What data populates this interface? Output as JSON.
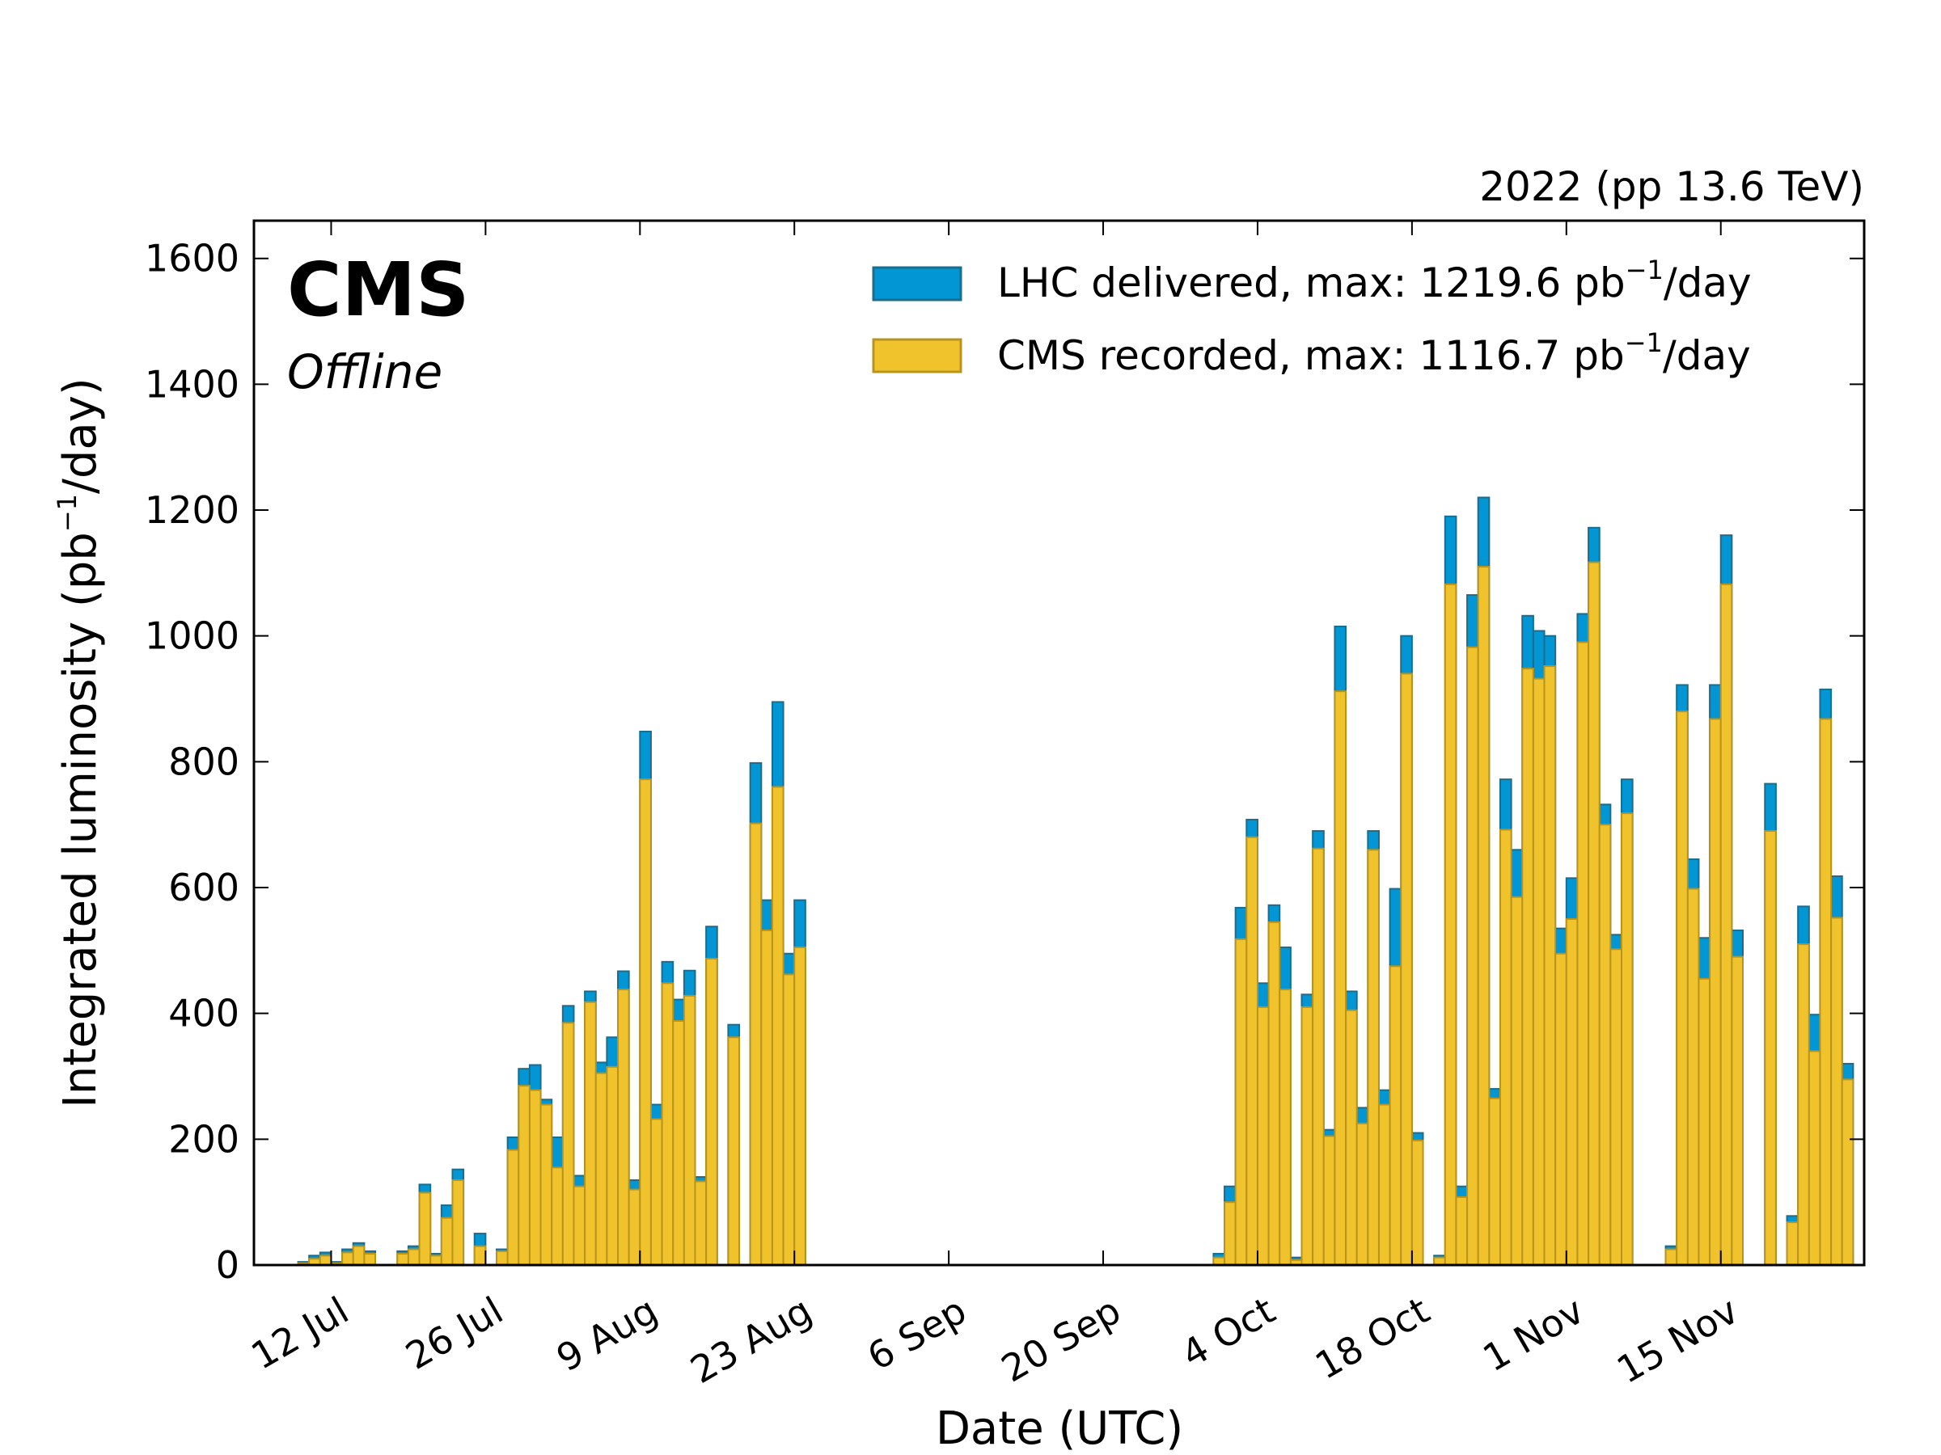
{
  "chart_data": {
    "type": "bar",
    "top_right_label": "2022 (pp 13.6 TeV)",
    "experiment": "CMS",
    "status": "Offline",
    "xlabel": "Date (UTC)",
    "ylabel": "Integrated luminosity (pb",
    "ylabel_sup": "−1",
    "ylabel_suffix": "/day)",
    "ylim": [
      0,
      1660
    ],
    "yticks": [
      0,
      200,
      400,
      600,
      800,
      1000,
      1200,
      1400,
      1600
    ],
    "x_start_date": "2022-07-05",
    "x_end_date": "2022-11-28",
    "xticks": [
      {
        "date": "2022-07-12",
        "label": "12 Jul"
      },
      {
        "date": "2022-07-26",
        "label": "26 Jul"
      },
      {
        "date": "2022-08-09",
        "label": "9 Aug"
      },
      {
        "date": "2022-08-23",
        "label": "23 Aug"
      },
      {
        "date": "2022-09-06",
        "label": "6 Sep"
      },
      {
        "date": "2022-09-20",
        "label": "20 Sep"
      },
      {
        "date": "2022-10-04",
        "label": "4 Oct"
      },
      {
        "date": "2022-10-18",
        "label": "18 Oct"
      },
      {
        "date": "2022-11-01",
        "label": "1 Nov"
      },
      {
        "date": "2022-11-15",
        "label": "15 Nov"
      }
    ],
    "legend": [
      {
        "label": "LHC delivered, max: 1219.6 pb",
        "sup": "−1",
        "suffix": "/day",
        "color": "#0296d4",
        "edge": "#1c6c8c"
      },
      {
        "label": "CMS recorded, max: 1116.7 pb",
        "sup": "−1",
        "suffix": "/day",
        "color": "#f0c22b",
        "edge": "#b8941e"
      }
    ],
    "grid": false,
    "legend_position": "top-right",
    "series": [
      {
        "name": "LHC delivered",
        "color": "#0296d4",
        "points": [
          [
            "2022-07-05",
            0
          ],
          [
            "2022-07-06",
            0
          ],
          [
            "2022-07-07",
            0
          ],
          [
            "2022-07-08",
            0
          ],
          [
            "2022-07-09",
            5
          ],
          [
            "2022-07-10",
            15
          ],
          [
            "2022-07-11",
            20
          ],
          [
            "2022-07-12",
            5
          ],
          [
            "2022-07-13",
            25
          ],
          [
            "2022-07-14",
            35
          ],
          [
            "2022-07-15",
            22
          ],
          [
            "2022-07-16",
            0
          ],
          [
            "2022-07-17",
            0
          ],
          [
            "2022-07-18",
            22
          ],
          [
            "2022-07-19",
            30
          ],
          [
            "2022-07-20",
            128
          ],
          [
            "2022-07-21",
            18
          ],
          [
            "2022-07-22",
            95
          ],
          [
            "2022-07-23",
            152
          ],
          [
            "2022-07-24",
            0
          ],
          [
            "2022-07-25",
            50
          ],
          [
            "2022-07-26",
            0
          ],
          [
            "2022-07-27",
            25
          ],
          [
            "2022-07-28",
            203
          ],
          [
            "2022-07-29",
            312
          ],
          [
            "2022-07-30",
            318
          ],
          [
            "2022-07-31",
            263
          ],
          [
            "2022-08-01",
            203
          ],
          [
            "2022-08-02",
            412
          ],
          [
            "2022-08-03",
            142
          ],
          [
            "2022-08-04",
            435
          ],
          [
            "2022-08-05",
            322
          ],
          [
            "2022-08-06",
            362
          ],
          [
            "2022-08-07",
            467
          ],
          [
            "2022-08-08",
            135
          ],
          [
            "2022-08-09",
            848
          ],
          [
            "2022-08-10",
            255
          ],
          [
            "2022-08-11",
            482
          ],
          [
            "2022-08-12",
            422
          ],
          [
            "2022-08-13",
            468
          ],
          [
            "2022-08-14",
            140
          ],
          [
            "2022-08-15",
            538
          ],
          [
            "2022-08-16",
            0
          ],
          [
            "2022-08-17",
            382
          ],
          [
            "2022-08-18",
            0
          ],
          [
            "2022-08-19",
            798
          ],
          [
            "2022-08-20",
            580
          ],
          [
            "2022-08-21",
            895
          ],
          [
            "2022-08-22",
            495
          ],
          [
            "2022-08-23",
            580
          ]
        ]
      },
      {
        "name": "CMS recorded",
        "color": "#f0c22b",
        "points": [
          [
            "2022-07-05",
            0
          ],
          [
            "2022-07-06",
            0
          ],
          [
            "2022-07-07",
            0
          ],
          [
            "2022-07-08",
            0
          ],
          [
            "2022-07-09",
            3
          ],
          [
            "2022-07-10",
            10
          ],
          [
            "2022-07-11",
            15
          ],
          [
            "2022-07-12",
            3
          ],
          [
            "2022-07-13",
            20
          ],
          [
            "2022-07-14",
            30
          ],
          [
            "2022-07-15",
            18
          ],
          [
            "2022-07-16",
            0
          ],
          [
            "2022-07-17",
            0
          ],
          [
            "2022-07-18",
            18
          ],
          [
            "2022-07-19",
            25
          ],
          [
            "2022-07-20",
            115
          ],
          [
            "2022-07-21",
            15
          ],
          [
            "2022-07-22",
            75
          ],
          [
            "2022-07-23",
            135
          ],
          [
            "2022-07-24",
            0
          ],
          [
            "2022-07-25",
            30
          ],
          [
            "2022-07-26",
            0
          ],
          [
            "2022-07-27",
            22
          ],
          [
            "2022-07-28",
            183
          ],
          [
            "2022-07-29",
            285
          ],
          [
            "2022-07-30",
            278
          ],
          [
            "2022-07-31",
            255
          ],
          [
            "2022-08-01",
            155
          ],
          [
            "2022-08-02",
            385
          ],
          [
            "2022-08-03",
            125
          ],
          [
            "2022-08-04",
            418
          ],
          [
            "2022-08-05",
            305
          ],
          [
            "2022-08-06",
            315
          ],
          [
            "2022-08-07",
            438
          ],
          [
            "2022-08-08",
            120
          ],
          [
            "2022-08-09",
            772
          ],
          [
            "2022-08-10",
            232
          ],
          [
            "2022-08-11",
            448
          ],
          [
            "2022-08-12",
            388
          ],
          [
            "2022-08-13",
            428
          ],
          [
            "2022-08-14",
            133
          ],
          [
            "2022-08-15",
            487
          ],
          [
            "2022-08-16",
            0
          ],
          [
            "2022-08-17",
            362
          ],
          [
            "2022-08-18",
            0
          ],
          [
            "2022-08-19",
            702
          ],
          [
            "2022-08-20",
            532
          ],
          [
            "2022-08-21",
            760
          ],
          [
            "2022-08-22",
            462
          ],
          [
            "2022-08-23",
            505
          ]
        ]
      }
    ],
    "series_autumn": [
      {
        "name": "LHC delivered",
        "points": [
          [
            "2022-09-28",
            0
          ],
          [
            "2022-09-29",
            0
          ],
          [
            "2022-09-30",
            18
          ],
          [
            "2022-10-01",
            125
          ],
          [
            "2022-10-02",
            568
          ],
          [
            "2022-10-03",
            708
          ],
          [
            "2022-10-04",
            448
          ],
          [
            "2022-10-05",
            572
          ],
          [
            "2022-10-06",
            505
          ],
          [
            "2022-10-07",
            12
          ],
          [
            "2022-10-08",
            430
          ],
          [
            "2022-10-09",
            690
          ],
          [
            "2022-10-10",
            215
          ],
          [
            "2022-10-11",
            1015
          ],
          [
            "2022-10-12",
            435
          ],
          [
            "2022-10-13",
            250
          ],
          [
            "2022-10-14",
            690
          ],
          [
            "2022-10-15",
            278
          ],
          [
            "2022-10-16",
            598
          ],
          [
            "2022-10-17",
            1000
          ],
          [
            "2022-10-18",
            210
          ],
          [
            "2022-10-19",
            0
          ],
          [
            "2022-10-20",
            15
          ],
          [
            "2022-10-21",
            1190
          ],
          [
            "2022-10-22",
            125
          ],
          [
            "2022-10-23",
            1065
          ],
          [
            "2022-10-24",
            1220
          ],
          [
            "2022-10-25",
            280
          ],
          [
            "2022-10-26",
            772
          ],
          [
            "2022-10-27",
            660
          ],
          [
            "2022-10-28",
            1032
          ],
          [
            "2022-10-29",
            1008
          ],
          [
            "2022-10-30",
            1000
          ],
          [
            "2022-10-31",
            535
          ],
          [
            "2022-11-01",
            615
          ],
          [
            "2022-11-02",
            1035
          ],
          [
            "2022-11-03",
            1172
          ],
          [
            "2022-11-04",
            732
          ],
          [
            "2022-11-05",
            525
          ],
          [
            "2022-11-06",
            772
          ],
          [
            "2022-11-07",
            0
          ],
          [
            "2022-11-08",
            0
          ],
          [
            "2022-11-09",
            0
          ],
          [
            "2022-11-10",
            30
          ],
          [
            "2022-11-11",
            922
          ],
          [
            "2022-11-12",
            645
          ],
          [
            "2022-11-13",
            520
          ],
          [
            "2022-11-14",
            922
          ],
          [
            "2022-11-15",
            1160
          ],
          [
            "2022-11-16",
            532
          ],
          [
            "2022-11-17",
            0
          ],
          [
            "2022-11-18",
            0
          ],
          [
            "2022-11-19",
            765
          ],
          [
            "2022-11-20",
            0
          ],
          [
            "2022-11-21",
            78
          ],
          [
            "2022-11-22",
            570
          ],
          [
            "2022-11-23",
            398
          ],
          [
            "2022-11-24",
            915
          ],
          [
            "2022-11-25",
            618
          ],
          [
            "2022-11-26",
            320
          ]
        ]
      },
      {
        "name": "CMS recorded",
        "points": [
          [
            "2022-09-28",
            0
          ],
          [
            "2022-09-29",
            0
          ],
          [
            "2022-09-30",
            12
          ],
          [
            "2022-10-01",
            100
          ],
          [
            "2022-10-02",
            518
          ],
          [
            "2022-10-03",
            680
          ],
          [
            "2022-10-04",
            410
          ],
          [
            "2022-10-05",
            545
          ],
          [
            "2022-10-06",
            438
          ],
          [
            "2022-10-07",
            8
          ],
          [
            "2022-10-08",
            410
          ],
          [
            "2022-10-09",
            662
          ],
          [
            "2022-10-10",
            205
          ],
          [
            "2022-10-11",
            912
          ],
          [
            "2022-10-12",
            405
          ],
          [
            "2022-10-13",
            225
          ],
          [
            "2022-10-14",
            660
          ],
          [
            "2022-10-15",
            255
          ],
          [
            "2022-10-16",
            475
          ],
          [
            "2022-10-17",
            940
          ],
          [
            "2022-10-18",
            198
          ],
          [
            "2022-10-19",
            0
          ],
          [
            "2022-10-20",
            12
          ],
          [
            "2022-10-21",
            1082
          ],
          [
            "2022-10-22",
            108
          ],
          [
            "2022-10-23",
            982
          ],
          [
            "2022-10-24",
            1110
          ],
          [
            "2022-10-25",
            265
          ],
          [
            "2022-10-26",
            692
          ],
          [
            "2022-10-27",
            585
          ],
          [
            "2022-10-28",
            948
          ],
          [
            "2022-10-29",
            932
          ],
          [
            "2022-10-30",
            952
          ],
          [
            "2022-10-31",
            495
          ],
          [
            "2022-11-01",
            550
          ],
          [
            "2022-11-02",
            990
          ],
          [
            "2022-11-03",
            1117
          ],
          [
            "2022-11-04",
            700
          ],
          [
            "2022-11-05",
            502
          ],
          [
            "2022-11-06",
            718
          ],
          [
            "2022-11-07",
            0
          ],
          [
            "2022-11-08",
            0
          ],
          [
            "2022-11-09",
            0
          ],
          [
            "2022-11-10",
            25
          ],
          [
            "2022-11-11",
            880
          ],
          [
            "2022-11-12",
            598
          ],
          [
            "2022-11-13",
            455
          ],
          [
            "2022-11-14",
            868
          ],
          [
            "2022-11-15",
            1082
          ],
          [
            "2022-11-16",
            490
          ],
          [
            "2022-11-17",
            0
          ],
          [
            "2022-11-18",
            0
          ],
          [
            "2022-11-19",
            690
          ],
          [
            "2022-11-20",
            0
          ],
          [
            "2022-11-21",
            68
          ],
          [
            "2022-11-22",
            510
          ],
          [
            "2022-11-23",
            340
          ],
          [
            "2022-11-24",
            868
          ],
          [
            "2022-11-25",
            552
          ],
          [
            "2022-11-26",
            295
          ]
        ]
      }
    ]
  }
}
